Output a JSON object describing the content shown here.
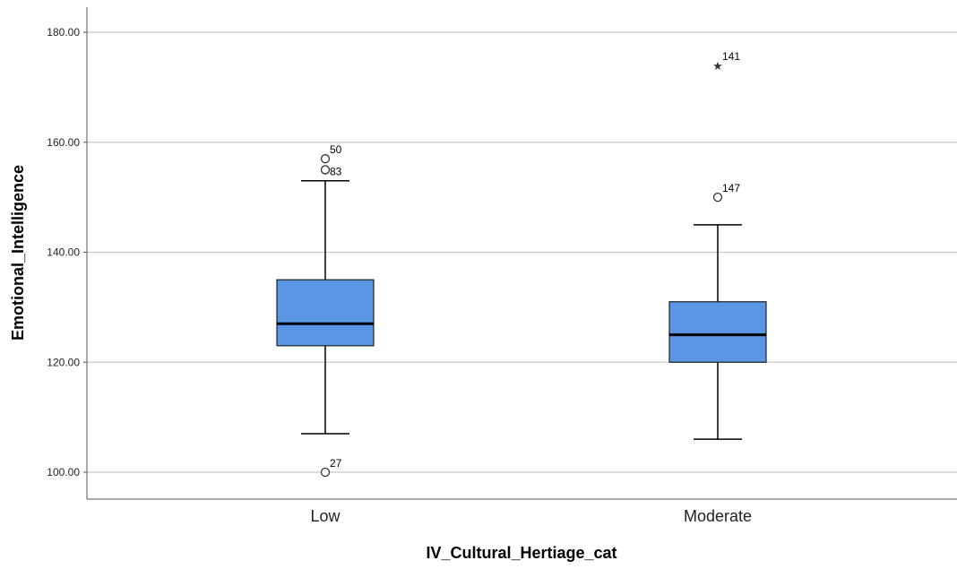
{
  "chart_data": {
    "type": "boxplot",
    "xlabel": "IV_Cultural_Hertiage_cat",
    "ylabel": "Emotional_Intelligence",
    "ylim": [
      96,
      184
    ],
    "yticks": [
      100,
      120,
      140,
      160,
      180
    ],
    "ytick_labels": [
      "100.00",
      "120.00",
      "140.00",
      "160.00",
      "180.00"
    ],
    "grid": true,
    "box_color": "#5a96e3",
    "categories": [
      "Low",
      "Moderate"
    ],
    "boxes": [
      {
        "category": "Low",
        "whisker_low": 107,
        "q1": 123,
        "median": 127,
        "q3": 135,
        "whisker_high": 153,
        "outliers": [
          {
            "value": 157,
            "label": "50",
            "marker": "circle"
          },
          {
            "value": 155,
            "label": "",
            "marker": "circle"
          },
          {
            "value": 153,
            "label": "83",
            "marker": "none"
          },
          {
            "value": 100,
            "label": "27",
            "marker": "circle"
          }
        ]
      },
      {
        "category": "Moderate",
        "whisker_low": 106,
        "q1": 120,
        "median": 125,
        "q3": 131,
        "whisker_high": 145,
        "outliers": [
          {
            "value": 174,
            "label": "141",
            "marker": "star"
          },
          {
            "value": 150,
            "label": "147",
            "marker": "circle"
          }
        ]
      }
    ]
  }
}
